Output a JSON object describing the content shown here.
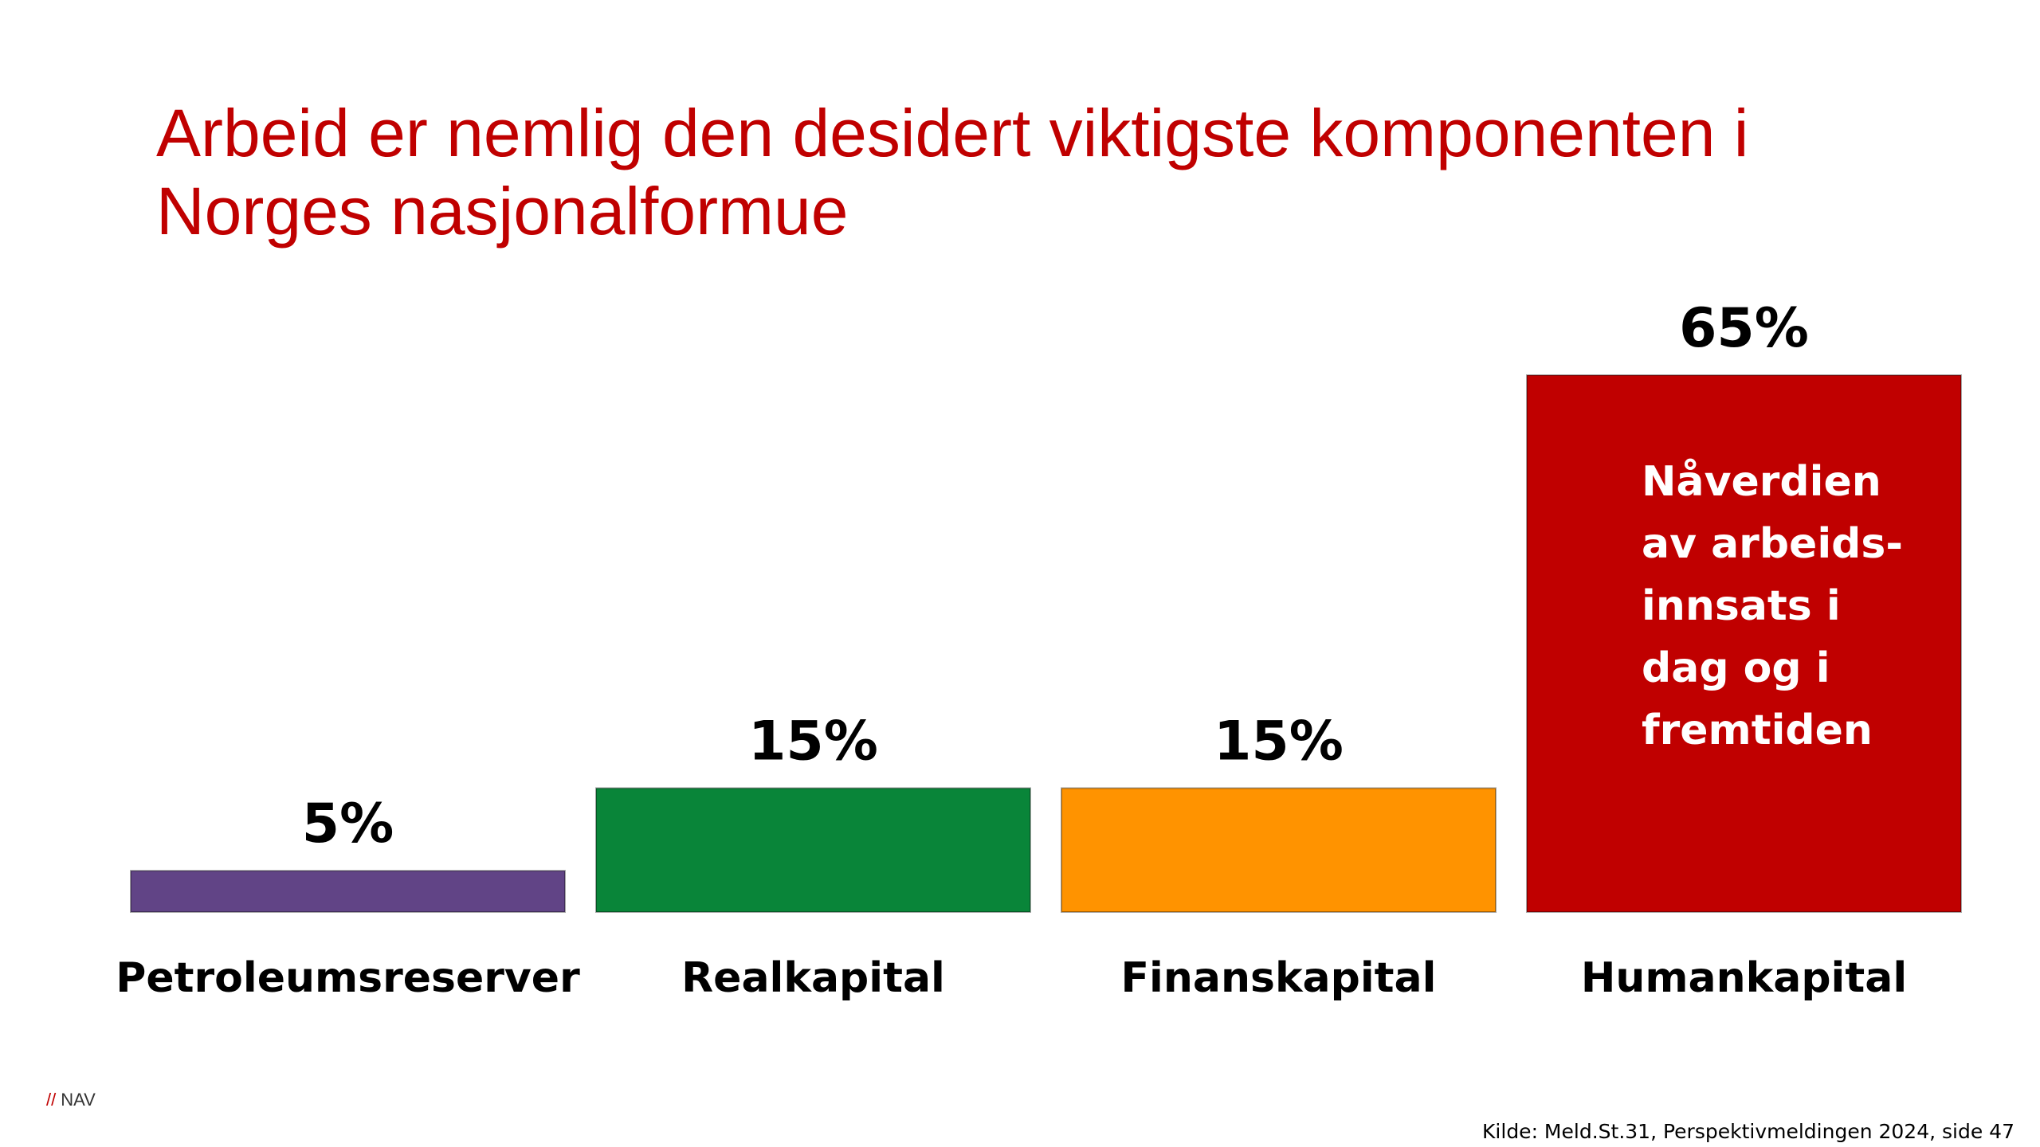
{
  "title_lines": [
    "Arbeid er nemlig den desidert viktigste komponenten i",
    "Norges nasjonalformue"
  ],
  "chart_data": {
    "type": "bar",
    "title": "Arbeid er nemlig den desidert viktigste komponenten i Norges nasjonalformue",
    "categories": [
      "Petroleumsreserver",
      "Realkapital",
      "Finanskapital",
      "Humankapital"
    ],
    "values": [
      5,
      15,
      15,
      65
    ],
    "data_labels": [
      "5%",
      "15%",
      "15%",
      "65%"
    ],
    "colors": [
      "#614486",
      "#098539",
      "#ff9300",
      "#c00000"
    ],
    "ylim": [
      0,
      65
    ],
    "grid": false,
    "legend": "none",
    "annotation": [
      "Nåverdien",
      "av arbeids-",
      "innsats i",
      "dag og i",
      "fremtiden"
    ]
  },
  "footer": {
    "logo_slashes": "//",
    "logo_text": "NAV",
    "source": "Kilde: Meld.St.31, Perspektivmeldingen 2024, side 47"
  }
}
